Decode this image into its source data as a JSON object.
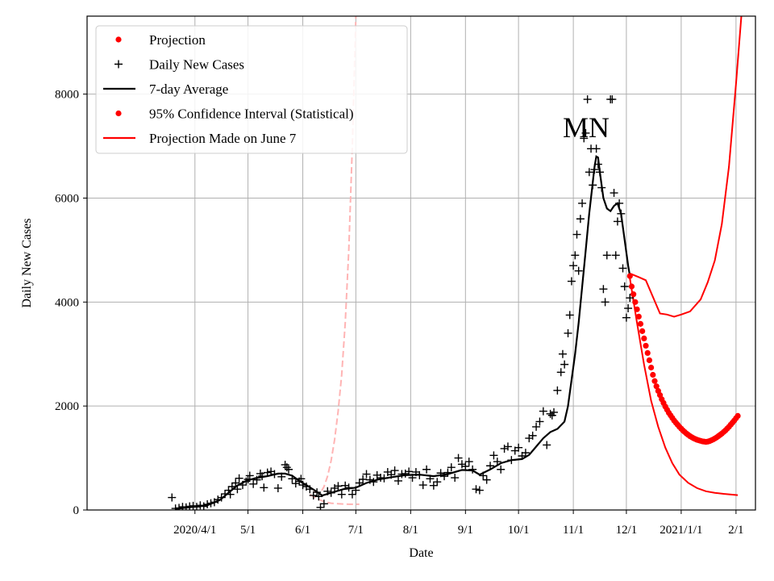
{
  "chart_data": {
    "type": "line",
    "title": "",
    "annotation": "MN",
    "xlabel": "Date",
    "ylabel": "Daily New Cases",
    "ylim": [
      0,
      9500
    ],
    "xlim_day": [
      -30,
      348
    ],
    "x_unit": "days since 2020-03-01",
    "grid": true,
    "legend_position": "top-left",
    "x_ticks": [
      {
        "day": 31,
        "label": "2020/4/1"
      },
      {
        "day": 61,
        "label": "5/1"
      },
      {
        "day": 92,
        "label": "6/1"
      },
      {
        "day": 122,
        "label": "7/1"
      },
      {
        "day": 153,
        "label": "8/1"
      },
      {
        "day": 184,
        "label": "9/1"
      },
      {
        "day": 214,
        "label": "10/1"
      },
      {
        "day": 245,
        "label": "11/1"
      },
      {
        "day": 275,
        "label": "12/1"
      },
      {
        "day": 306,
        "label": "2021/1/1"
      },
      {
        "day": 337,
        "label": "2/1"
      }
    ],
    "y_ticks": [
      {
        "value": 0,
        "label": "0"
      },
      {
        "value": 2000,
        "label": "2000"
      },
      {
        "value": 4000,
        "label": "4000"
      },
      {
        "value": 6000,
        "label": "6000"
      },
      {
        "value": 8000,
        "label": "8000"
      }
    ],
    "legend": [
      {
        "label": "Projection",
        "marker": "dot",
        "color": "#ff0000"
      },
      {
        "label": "Daily New Cases",
        "marker": "plus",
        "color": "#000000"
      },
      {
        "label": "7-day Average",
        "marker": "line",
        "color": "#000000"
      },
      {
        "label": "95% Confidence Interval (Statistical)",
        "marker": "dot",
        "color": "#ff0000"
      },
      {
        "label": "Projection Made on June 7",
        "marker": "line",
        "color": "#ff0000"
      }
    ],
    "series": [
      {
        "name": "7-day Average",
        "color": "#000000",
        "points": [
          [
            20,
            20
          ],
          [
            30,
            60
          ],
          [
            38,
            90
          ],
          [
            45,
            190
          ],
          [
            50,
            330
          ],
          [
            55,
            470
          ],
          [
            60,
            560
          ],
          [
            65,
            610
          ],
          [
            72,
            650
          ],
          [
            78,
            700
          ],
          [
            82,
            700
          ],
          [
            86,
            660
          ],
          [
            90,
            560
          ],
          [
            95,
            460
          ],
          [
            100,
            350
          ],
          [
            103,
            280
          ],
          [
            108,
            330
          ],
          [
            115,
            400
          ],
          [
            122,
            430
          ],
          [
            128,
            520
          ],
          [
            135,
            590
          ],
          [
            142,
            630
          ],
          [
            150,
            670
          ],
          [
            158,
            680
          ],
          [
            166,
            650
          ],
          [
            174,
            690
          ],
          [
            182,
            770
          ],
          [
            188,
            760
          ],
          [
            192,
            680
          ],
          [
            198,
            780
          ],
          [
            204,
            900
          ],
          [
            210,
            960
          ],
          [
            216,
            980
          ],
          [
            220,
            1060
          ],
          [
            224,
            1220
          ],
          [
            228,
            1380
          ],
          [
            232,
            1500
          ],
          [
            236,
            1560
          ],
          [
            240,
            1700
          ],
          [
            242,
            2000
          ],
          [
            244,
            2500
          ],
          [
            246,
            3000
          ],
          [
            248,
            3600
          ],
          [
            250,
            4300
          ],
          [
            252,
            5000
          ],
          [
            254,
            5700
          ],
          [
            256,
            6300
          ],
          [
            257,
            6600
          ],
          [
            258,
            6800
          ],
          [
            259,
            6780
          ],
          [
            260,
            6500
          ],
          [
            262,
            6000
          ],
          [
            264,
            5800
          ],
          [
            266,
            5750
          ],
          [
            268,
            5850
          ],
          [
            270,
            5900
          ],
          [
            272,
            5700
          ],
          [
            274,
            5200
          ],
          [
            276,
            4700
          ],
          [
            277,
            4500
          ]
        ]
      },
      {
        "name": "Projection",
        "color": "#ff0000",
        "points": [
          [
            277,
            4500
          ],
          [
            278,
            4300
          ],
          [
            279,
            4150
          ],
          [
            280,
            4000
          ],
          [
            281,
            3860
          ],
          [
            282,
            3720
          ],
          [
            283,
            3580
          ],
          [
            284,
            3440
          ],
          [
            285,
            3300
          ],
          [
            286,
            3160
          ],
          [
            287,
            3020
          ],
          [
            288,
            2880
          ],
          [
            289,
            2740
          ],
          [
            290,
            2600
          ],
          [
            291,
            2480
          ],
          [
            292,
            2380
          ],
          [
            293,
            2290
          ],
          [
            294,
            2210
          ],
          [
            295,
            2130
          ],
          [
            296,
            2060
          ],
          [
            297,
            1990
          ],
          [
            298,
            1930
          ],
          [
            299,
            1870
          ],
          [
            300,
            1820
          ],
          [
            301,
            1770
          ],
          [
            302,
            1720
          ],
          [
            303,
            1680
          ],
          [
            304,
            1640
          ],
          [
            305,
            1600
          ],
          [
            306,
            1565
          ],
          [
            307,
            1530
          ],
          [
            308,
            1500
          ],
          [
            309,
            1470
          ],
          [
            310,
            1445
          ],
          [
            311,
            1420
          ],
          [
            312,
            1400
          ],
          [
            313,
            1380
          ],
          [
            314,
            1365
          ],
          [
            315,
            1350
          ],
          [
            316,
            1340
          ],
          [
            317,
            1330
          ],
          [
            318,
            1320
          ],
          [
            319,
            1315
          ],
          [
            320,
            1310
          ],
          [
            321,
            1315
          ],
          [
            322,
            1325
          ],
          [
            323,
            1340
          ],
          [
            324,
            1355
          ],
          [
            325,
            1375
          ],
          [
            326,
            1395
          ],
          [
            327,
            1420
          ],
          [
            328,
            1445
          ],
          [
            329,
            1470
          ],
          [
            330,
            1500
          ],
          [
            331,
            1530
          ],
          [
            332,
            1565
          ],
          [
            333,
            1600
          ],
          [
            334,
            1640
          ],
          [
            335,
            1680
          ],
          [
            336,
            1720
          ],
          [
            337,
            1765
          ],
          [
            338,
            1810
          ]
        ]
      },
      {
        "name": "95% Confidence Interval (Statistical) upper",
        "color": "#ff0000",
        "points": [
          [
            277,
            4550
          ],
          [
            282,
            4480
          ],
          [
            286,
            4420
          ],
          [
            290,
            4100
          ],
          [
            294,
            3780
          ],
          [
            298,
            3760
          ],
          [
            302,
            3720
          ],
          [
            306,
            3760
          ],
          [
            311,
            3820
          ],
          [
            317,
            4050
          ],
          [
            321,
            4380
          ],
          [
            325,
            4800
          ],
          [
            329,
            5500
          ],
          [
            333,
            6600
          ],
          [
            337,
            8200
          ],
          [
            340,
            9500
          ]
        ]
      },
      {
        "name": "95% Confidence Interval (Statistical) lower",
        "color": "#ff0000",
        "points": [
          [
            277,
            4450
          ],
          [
            281,
            3600
          ],
          [
            285,
            2800
          ],
          [
            289,
            2100
          ],
          [
            293,
            1600
          ],
          [
            297,
            1200
          ],
          [
            301,
            900
          ],
          [
            305,
            680
          ],
          [
            310,
            520
          ],
          [
            315,
            420
          ],
          [
            320,
            360
          ],
          [
            325,
            330
          ],
          [
            330,
            310
          ],
          [
            335,
            295
          ],
          [
            338,
            285
          ]
        ]
      },
      {
        "name": "Projection Made on June 7",
        "color": "#ffb4b4",
        "dashed": true,
        "points": [
          [
            98,
            350
          ],
          [
            102,
            330
          ],
          [
            104,
            450
          ],
          [
            106,
            650
          ],
          [
            108,
            950
          ],
          [
            110,
            1350
          ],
          [
            112,
            1900
          ],
          [
            114,
            2600
          ],
          [
            116,
            3600
          ],
          [
            118,
            5000
          ],
          [
            120,
            7000
          ],
          [
            122,
            9500
          ]
        ]
      },
      {
        "name": "Projection Made on June 7 lower",
        "color": "#ffb4b4",
        "dashed": true,
        "points": [
          [
            96,
            300
          ],
          [
            100,
            220
          ],
          [
            104,
            160
          ],
          [
            108,
            130
          ],
          [
            112,
            120
          ],
          [
            118,
            110
          ],
          [
            124,
            110
          ]
        ]
      }
    ],
    "daily_new_cases": [
      [
        18,
        240
      ],
      [
        20,
        30
      ],
      [
        22,
        40
      ],
      [
        24,
        60
      ],
      [
        26,
        50
      ],
      [
        28,
        70
      ],
      [
        30,
        80
      ],
      [
        32,
        60
      ],
      [
        34,
        90
      ],
      [
        36,
        70
      ],
      [
        38,
        110
      ],
      [
        40,
        130
      ],
      [
        42,
        150
      ],
      [
        44,
        200
      ],
      [
        46,
        240
      ],
      [
        48,
        310
      ],
      [
        50,
        380
      ],
      [
        51,
        300
      ],
      [
        52,
        450
      ],
      [
        54,
        520
      ],
      [
        55,
        400
      ],
      [
        56,
        610
      ],
      [
        58,
        480
      ],
      [
        60,
        550
      ],
      [
        61,
        590
      ],
      [
        62,
        660
      ],
      [
        64,
        500
      ],
      [
        66,
        580
      ],
      [
        68,
        700
      ],
      [
        69,
        650
      ],
      [
        70,
        430
      ],
      [
        72,
        720
      ],
      [
        74,
        740
      ],
      [
        76,
        690
      ],
      [
        78,
        420
      ],
      [
        80,
        640
      ],
      [
        82,
        870
      ],
      [
        83,
        820
      ],
      [
        84,
        780
      ],
      [
        86,
        600
      ],
      [
        88,
        510
      ],
      [
        90,
        550
      ],
      [
        91,
        600
      ],
      [
        92,
        480
      ],
      [
        94,
        450
      ],
      [
        96,
        400
      ],
      [
        98,
        280
      ],
      [
        100,
        340
      ],
      [
        101,
        260
      ],
      [
        102,
        50
      ],
      [
        104,
        120
      ],
      [
        106,
        360
      ],
      [
        108,
        330
      ],
      [
        110,
        420
      ],
      [
        112,
        460
      ],
      [
        114,
        300
      ],
      [
        116,
        470
      ],
      [
        118,
        430
      ],
      [
        120,
        300
      ],
      [
        122,
        380
      ],
      [
        124,
        520
      ],
      [
        126,
        590
      ],
      [
        128,
        690
      ],
      [
        130,
        580
      ],
      [
        132,
        540
      ],
      [
        134,
        670
      ],
      [
        136,
        620
      ],
      [
        138,
        610
      ],
      [
        140,
        730
      ],
      [
        142,
        680
      ],
      [
        144,
        760
      ],
      [
        146,
        560
      ],
      [
        148,
        690
      ],
      [
        150,
        700
      ],
      [
        152,
        740
      ],
      [
        154,
        620
      ],
      [
        156,
        730
      ],
      [
        158,
        670
      ],
      [
        160,
        480
      ],
      [
        162,
        780
      ],
      [
        164,
        600
      ],
      [
        166,
        470
      ],
      [
        168,
        540
      ],
      [
        170,
        710
      ],
      [
        172,
        650
      ],
      [
        174,
        720
      ],
      [
        176,
        820
      ],
      [
        178,
        620
      ],
      [
        180,
        1000
      ],
      [
        182,
        880
      ],
      [
        184,
        840
      ],
      [
        186,
        930
      ],
      [
        188,
        780
      ],
      [
        190,
        400
      ],
      [
        192,
        380
      ],
      [
        194,
        660
      ],
      [
        196,
        580
      ],
      [
        198,
        850
      ],
      [
        200,
        1050
      ],
      [
        202,
        930
      ],
      [
        204,
        780
      ],
      [
        206,
        1180
      ],
      [
        208,
        1220
      ],
      [
        210,
        960
      ],
      [
        212,
        1140
      ],
      [
        214,
        1200
      ],
      [
        216,
        1040
      ],
      [
        218,
        1100
      ],
      [
        220,
        1380
      ],
      [
        222,
        1430
      ],
      [
        224,
        1600
      ],
      [
        226,
        1700
      ],
      [
        228,
        1900
      ],
      [
        230,
        1250
      ],
      [
        232,
        1850
      ],
      [
        233,
        1820
      ],
      [
        234,
        1880
      ],
      [
        236,
        2300
      ],
      [
        238,
        2650
      ],
      [
        239,
        3000
      ],
      [
        240,
        2800
      ],
      [
        242,
        3400
      ],
      [
        243,
        3750
      ],
      [
        244,
        4400
      ],
      [
        245,
        4700
      ],
      [
        246,
        4900
      ],
      [
        247,
        5300
      ],
      [
        248,
        4600
      ],
      [
        249,
        5600
      ],
      [
        250,
        5900
      ],
      [
        251,
        7150
      ],
      [
        252,
        7250
      ],
      [
        253,
        7900
      ],
      [
        254,
        6500
      ],
      [
        255,
        6950
      ],
      [
        256,
        6250
      ],
      [
        257,
        6550
      ],
      [
        258,
        6950
      ],
      [
        259,
        6650
      ],
      [
        260,
        6500
      ],
      [
        261,
        6200
      ],
      [
        262,
        4250
      ],
      [
        263,
        4000
      ],
      [
        264,
        4900
      ],
      [
        266,
        7900
      ],
      [
        267,
        7900
      ],
      [
        268,
        6100
      ],
      [
        269,
        4900
      ],
      [
        270,
        5550
      ],
      [
        271,
        5900
      ],
      [
        272,
        5700
      ],
      [
        273,
        4650
      ],
      [
        274,
        4300
      ],
      [
        275,
        3700
      ],
      [
        276,
        3880
      ],
      [
        277,
        4080
      ]
    ]
  }
}
